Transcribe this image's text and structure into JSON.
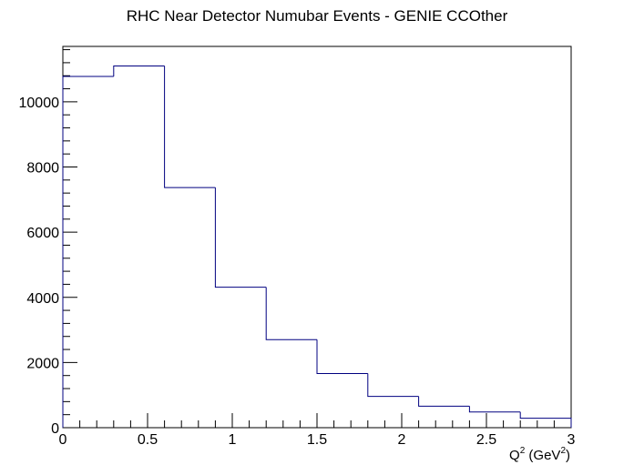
{
  "chart_data": {
    "type": "histogram",
    "title": "RHC Near Detector Numubar Events - GENIE CCOther",
    "xlabel": {
      "pre": "Q",
      "sup1": "2",
      "mid": " (GeV",
      "sup2": "2",
      "post": ")"
    },
    "ylabel": "",
    "xlim": [
      0,
      3
    ],
    "ylim": [
      0,
      11700
    ],
    "grid": false,
    "legend": "none",
    "line_color": "#000080",
    "bin_edges": [
      0,
      0.3,
      0.6,
      0.9,
      1.2,
      1.5,
      1.8,
      2.1,
      2.4,
      2.7,
      3.0
    ],
    "values": [
      10780,
      11100,
      7370,
      4310,
      2700,
      1660,
      960,
      660,
      480,
      290
    ],
    "x_major_ticks": [
      0,
      0.5,
      1,
      1.5,
      2,
      2.5,
      3
    ],
    "x_tick_labels": [
      "0",
      "0.5",
      "1",
      "1.5",
      "2",
      "2.5",
      "3"
    ],
    "y_major_ticks": [
      0,
      2000,
      4000,
      6000,
      8000,
      10000
    ],
    "y_tick_labels": [
      "0",
      "2000",
      "4000",
      "6000",
      "8000",
      "10000"
    ]
  }
}
